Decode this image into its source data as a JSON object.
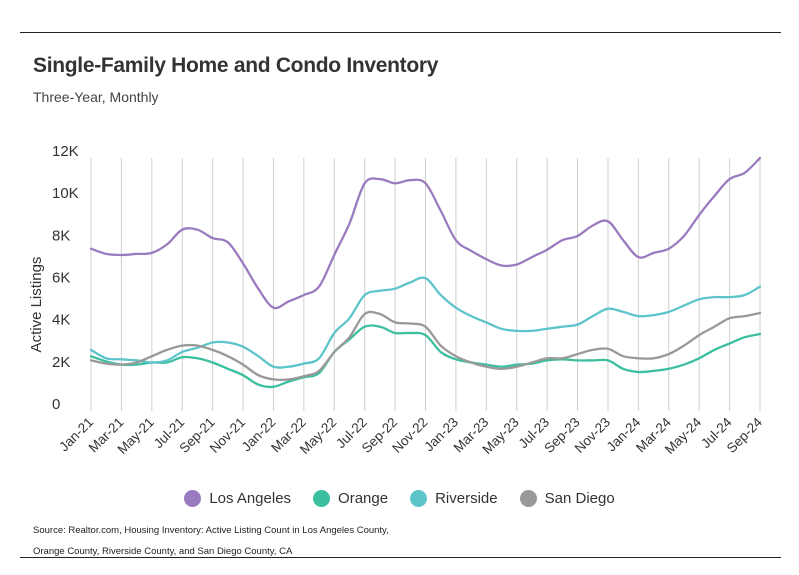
{
  "title": "Single-Family Home and Condo Inventory",
  "subtitle": "Three-Year, Monthly",
  "source": "Source: Realtor.com, Housing Inventory: Active Listing Count in Los Angeles County, Orange County, Riverside County, and San Diego County, CA",
  "chart_data": {
    "type": "line",
    "ylabel": "Active Listings",
    "xlabel": "",
    "ylim": [
      0,
      12000
    ],
    "y_ticks": [
      0,
      2000,
      4000,
      6000,
      8000,
      10000,
      12000
    ],
    "y_tick_labels": [
      "0",
      "2K",
      "4K",
      "6K",
      "8K",
      "10K",
      "12K"
    ],
    "grid": "vertical",
    "legend_position": "bottom",
    "x": [
      "Jan-21",
      "Feb-21",
      "Mar-21",
      "Apr-21",
      "May-21",
      "Jun-21",
      "Jul-21",
      "Aug-21",
      "Sep-21",
      "Oct-21",
      "Nov-21",
      "Dec-21",
      "Jan-22",
      "Feb-22",
      "Mar-22",
      "Apr-22",
      "May-22",
      "Jun-22",
      "Jul-22",
      "Aug-22",
      "Sep-22",
      "Oct-22",
      "Nov-22",
      "Dec-22",
      "Jan-23",
      "Feb-23",
      "Mar-23",
      "Apr-23",
      "May-23",
      "Jun-23",
      "Jul-23",
      "Aug-23",
      "Sep-23",
      "Oct-23",
      "Nov-23",
      "Dec-23",
      "Jan-24",
      "Feb-24",
      "Mar-24",
      "Apr-24",
      "May-24",
      "Jun-24",
      "Jul-24",
      "Aug-24",
      "Sep-24"
    ],
    "x_tick_labels": [
      "Jan-21",
      "Mar-21",
      "May-21",
      "Jul-21",
      "Sep-21",
      "Nov-21",
      "Jan-22",
      "Mar-22",
      "May-22",
      "Jul-22",
      "Sep-22",
      "Nov-22",
      "Jan-23",
      "Mar-23",
      "May-23",
      "Jul-23",
      "Sep-23",
      "Nov-23",
      "Jan-24",
      "Mar-24",
      "May-24",
      "Jul-24",
      "Sep-24"
    ],
    "series": [
      {
        "name": "Los Angeles",
        "color": "#9b7bbf",
        "values": [
          7700,
          7450,
          7400,
          7450,
          7500,
          7900,
          8600,
          8600,
          8200,
          8000,
          7000,
          5800,
          4900,
          5200,
          5500,
          5900,
          7400,
          8900,
          10800,
          11000,
          10800,
          10950,
          10800,
          9500,
          8100,
          7600,
          7200,
          6900,
          6950,
          7300,
          7650,
          8100,
          8300,
          8800,
          9000,
          8100,
          7300,
          7500,
          7700,
          8300,
          9300,
          10200,
          11000,
          11300,
          12000
        ]
      },
      {
        "name": "Orange",
        "color": "#3cbf9f",
        "values": [
          2600,
          2350,
          2200,
          2200,
          2300,
          2300,
          2550,
          2500,
          2300,
          2000,
          1700,
          1250,
          1150,
          1400,
          1600,
          1800,
          2800,
          3400,
          4000,
          4000,
          3700,
          3700,
          3600,
          2800,
          2450,
          2300,
          2200,
          2100,
          2200,
          2250,
          2400,
          2450,
          2400,
          2400,
          2400,
          2000,
          1850,
          1900,
          2000,
          2200,
          2500,
          2900,
          3200,
          3500,
          3650
        ]
      },
      {
        "name": "Riverside",
        "color": "#5ec4cc",
        "values": [
          2900,
          2500,
          2450,
          2400,
          2300,
          2400,
          2800,
          3000,
          3250,
          3250,
          3050,
          2600,
          2100,
          2100,
          2250,
          2500,
          3700,
          4400,
          5500,
          5700,
          5800,
          6100,
          6300,
          5500,
          4900,
          4500,
          4200,
          3900,
          3800,
          3800,
          3900,
          4000,
          4100,
          4500,
          4850,
          4700,
          4500,
          4550,
          4700,
          5000,
          5300,
          5400,
          5400,
          5500,
          5900
        ]
      },
      {
        "name": "San Diego",
        "color": "#999999",
        "values": [
          2400,
          2250,
          2200,
          2300,
          2600,
          2900,
          3100,
          3100,
          2900,
          2600,
          2200,
          1700,
          1500,
          1500,
          1650,
          1900,
          2800,
          3500,
          4600,
          4600,
          4200,
          4150,
          4000,
          3100,
          2600,
          2300,
          2100,
          2000,
          2100,
          2300,
          2500,
          2500,
          2700,
          2900,
          2950,
          2600,
          2500,
          2500,
          2700,
          3100,
          3600,
          4000,
          4400,
          4500,
          4650
        ]
      }
    ]
  }
}
